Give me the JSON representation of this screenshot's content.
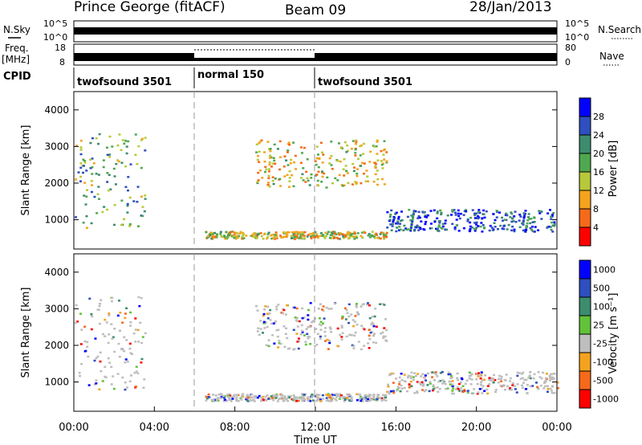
{
  "header": {
    "station": "Prince George (fitACF)",
    "beam": "Beam 09",
    "date": "28/Jan/2013"
  },
  "colors": {
    "power": [
      "#0000ff",
      "#2e4fbe",
      "#3c8c6e",
      "#4fa84f",
      "#b7c93a",
      "#f5a31e",
      "#f56a1a",
      "#ff0000"
    ],
    "velocity": [
      "#0000ff",
      "#2e4fbe",
      "#3c8c6e",
      "#61c33a",
      "#bebebe",
      "#f5a31e",
      "#f56a1a",
      "#ff0000"
    ],
    "ground_scatter": "#bebebe"
  },
  "chart_data": [
    {
      "type": "line",
      "panel": "noise",
      "left_label": "N.Sky",
      "right_label": "N.Search",
      "left_ticks": [
        "10^5",
        "10^0"
      ],
      "right_ticks": [
        "10^5",
        "10^0"
      ]
    },
    {
      "type": "line",
      "panel": "frequency",
      "left_label": "Freq.",
      "left_unit": "[MHz]",
      "right_label": "Nave",
      "left_ticks": [
        "18",
        "8"
      ],
      "right_ticks": [
        "80",
        "0"
      ]
    },
    {
      "type": "table",
      "panel": "cpid",
      "label": "CPID",
      "segments": [
        {
          "name": "twofsound 3501",
          "start_h": 0,
          "end_h": 6
        },
        {
          "name": "normal 150",
          "start_h": 6,
          "end_h": 12
        },
        {
          "name": "twofsound 3501",
          "start_h": 12,
          "end_h": 24
        }
      ]
    },
    {
      "type": "heatmap",
      "panel": "power",
      "ylabel": "Slant Range [km]",
      "colorbar_label": "Power [dB]",
      "colorbar_ticks": [
        "28",
        "24",
        "20",
        "16",
        "12",
        "8",
        "4"
      ],
      "yticks": [
        1000,
        2000,
        3000,
        4000
      ],
      "ylim": [
        200,
        4500
      ],
      "xlim": [
        0,
        24
      ],
      "scatter_regions": [
        {
          "t0": 0.0,
          "t1": 3.5,
          "r0": 800,
          "r1": 3400,
          "level": 0.6
        },
        {
          "t0": 9.0,
          "t1": 15.5,
          "r0": 1900,
          "r1": 3200,
          "level": 0.4
        },
        {
          "t0": 6.5,
          "t1": 15.5,
          "r0": 500,
          "r1": 700,
          "level": 0.4
        },
        {
          "t0": 15.5,
          "t1": 24.0,
          "r0": 700,
          "r1": 1300,
          "level": 0.85
        }
      ]
    },
    {
      "type": "heatmap",
      "panel": "velocity",
      "ylabel": "Slant Range [km]",
      "colorbar_label": "Velocity [m s⁻¹]",
      "colorbar_ticks": [
        "1000",
        "500",
        "100",
        "25",
        "-25",
        "-100",
        "-500",
        "-1000"
      ],
      "yticks": [
        1000,
        2000,
        3000,
        4000
      ],
      "ylim": [
        200,
        4500
      ],
      "xlim": [
        0,
        24
      ],
      "xticks": [
        "00:00",
        "04:00",
        "08:00",
        "12:00",
        "16:00",
        "20:00",
        "00:00"
      ],
      "xlabel": "Time UT"
    }
  ]
}
